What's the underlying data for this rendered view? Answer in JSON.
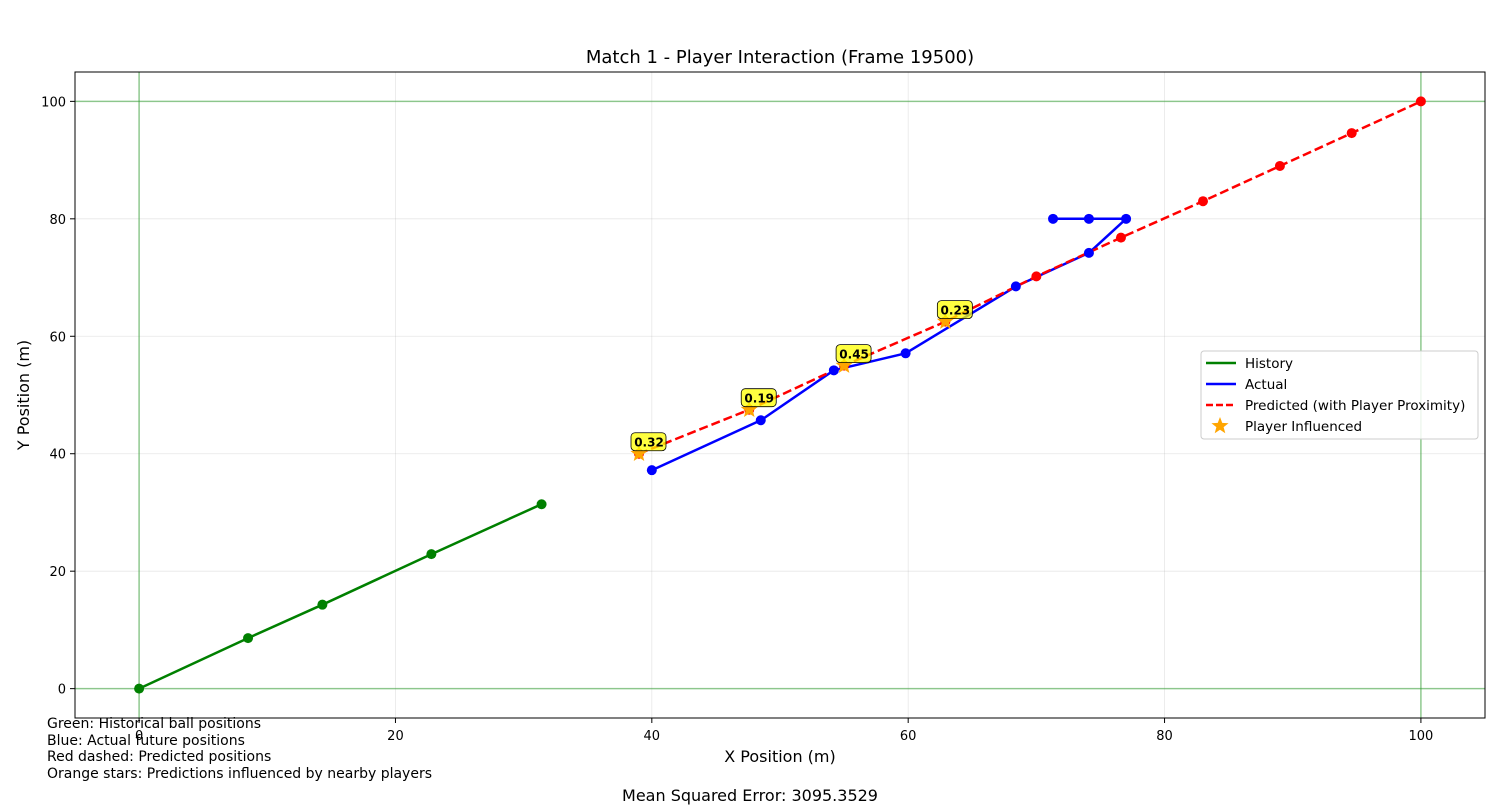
{
  "chart_data": {
    "type": "line",
    "title": "Match 1 - Player Interaction (Frame 19500)",
    "xlabel": "X Position (m)",
    "ylabel": "Y Position (m)",
    "xlim": [
      -5,
      105
    ],
    "ylim": [
      -5,
      105
    ],
    "x_ticks": [
      0,
      20,
      40,
      60,
      80,
      100
    ],
    "y_ticks": [
      0,
      20,
      40,
      60,
      80,
      100
    ],
    "grid": true,
    "field_boundary_lines": {
      "x": [
        0,
        100
      ],
      "y": [
        0,
        100
      ],
      "color": "#2ca02c"
    },
    "legend_position": "center-right",
    "series": [
      {
        "name": "History",
        "color": "#008000",
        "style": "solid",
        "points": [
          [
            0,
            0
          ],
          [
            8.5,
            8.6
          ],
          [
            14.3,
            14.3
          ],
          [
            22.8,
            22.9
          ],
          [
            31.4,
            31.4
          ]
        ]
      },
      {
        "name": "Actual",
        "color": "#0000ff",
        "style": "solid",
        "points": [
          [
            40,
            37.2
          ],
          [
            48.5,
            45.7
          ],
          [
            54.2,
            54.2
          ],
          [
            59.8,
            57.1
          ],
          [
            68.4,
            68.5
          ],
          [
            74.1,
            74.2
          ],
          [
            77,
            80
          ],
          [
            74.1,
            80
          ],
          [
            71.3,
            80
          ]
        ]
      },
      {
        "name": "Predicted (with Player Proximity)",
        "color": "#ff0000",
        "style": "dashed",
        "points": [
          [
            39,
            40
          ],
          [
            47.6,
            47.5
          ],
          [
            55,
            55
          ],
          [
            62.9,
            62.5
          ],
          [
            70,
            70.2
          ],
          [
            76.6,
            76.8
          ],
          [
            83,
            83
          ],
          [
            89,
            89
          ],
          [
            94.6,
            94.6
          ],
          [
            100,
            100
          ]
        ]
      }
    ],
    "player_influenced": {
      "name": "Player Influenced",
      "color": "#ffa500",
      "points": [
        [
          39,
          40
        ],
        [
          47.6,
          47.5
        ],
        [
          55,
          55
        ],
        [
          62.9,
          62.5
        ]
      ],
      "labels": [
        "0.32",
        "0.19",
        "0.45",
        "0.23"
      ]
    }
  },
  "notes": [
    "Green: Historical ball positions",
    "Blue: Actual future positions",
    "Red dashed: Predicted positions",
    "Orange stars: Predictions influenced by nearby players"
  ],
  "mse_text": "Mean Squared Error: 3095.3529"
}
